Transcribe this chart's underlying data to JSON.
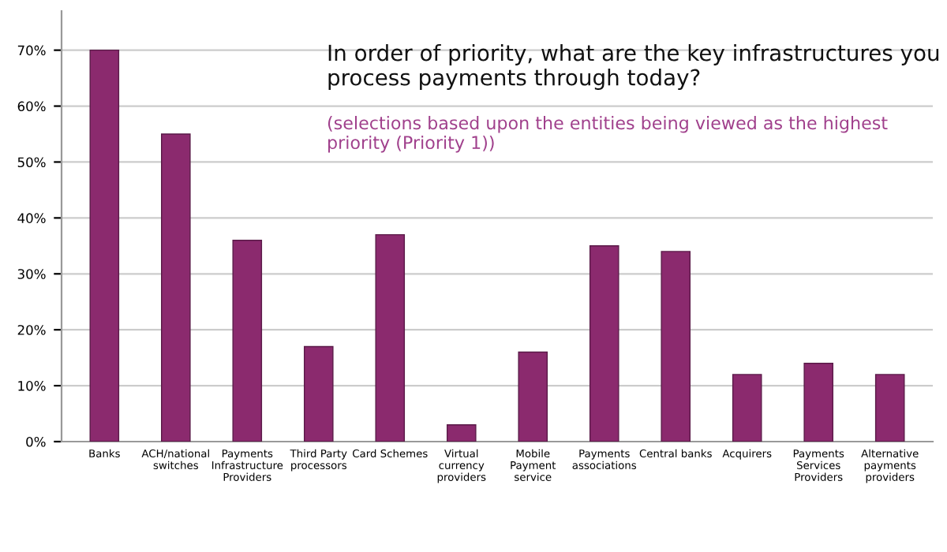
{
  "chart_data": {
    "type": "bar",
    "title": "In order of priority, what are the key infrastructures you\nprocess payments through today?",
    "subtitle": "(selections based upon the entities being viewed as the highest\npriority (Priority 1))",
    "categories": [
      "Banks",
      "ACH/national\nswitches",
      "Payments\nInfrastructure\nProviders",
      "Third Party\nprocessors",
      "Card Schemes",
      "Virtual\ncurrency\nproviders",
      "Mobile\nPayment\nservice",
      "Payments\nassociations",
      "Central banks",
      "Acquirers",
      "Payments\nServices\nProviders",
      "Alternative\npayments\nproviders"
    ],
    "values": [
      70,
      55,
      36,
      17,
      37,
      3,
      16,
      35,
      34,
      12,
      14,
      12
    ],
    "color": "#8b2a6e",
    "ylim": [
      0,
      77
    ],
    "yticks": [
      {
        "value": 0,
        "label": "0%"
      },
      {
        "value": 10,
        "label": "10%"
      },
      {
        "value": 20,
        "label": "20%"
      },
      {
        "value": 30,
        "label": "30%"
      },
      {
        "value": 40,
        "label": "40%"
      },
      {
        "value": 50,
        "label": "50%"
      },
      {
        "value": 60,
        "label": "60%"
      },
      {
        "value": 70,
        "label": "70%"
      }
    ],
    "grid": "y",
    "legend": false
  }
}
